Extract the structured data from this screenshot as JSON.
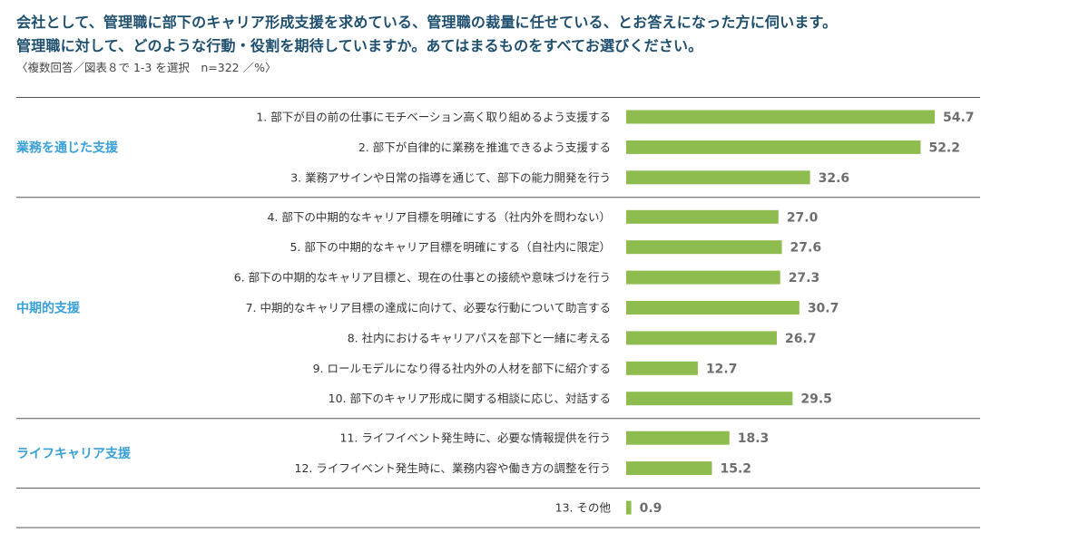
{
  "question": {
    "line1": "会社として、管理職に部下のキャリア形成支援を求めている、管理職の裁量に任せている、とお答えになった方に伺います。",
    "line2": "管理職に対して、どのような行動・役割を期待していますか。あてはまるものをすべてお選びください。",
    "note": "〈複数回答／図表８で 1-3 を選択　n=322 ／%〉"
  },
  "colors": {
    "bar": "#8fbc4e",
    "group_label": "#3aa0d8",
    "divider": "#555555"
  },
  "chart_data": {
    "type": "bar",
    "orientation": "horizontal",
    "xlim": [
      0,
      60
    ],
    "grid": false,
    "legend": "none",
    "groups": [
      {
        "label": "業務を通じた支援",
        "items": [
          {
            "label": "1. 部下が目の前の仕事にモチベーション高く取り組めるよう支援する",
            "value": 54.7
          },
          {
            "label": "2. 部下が自律的に業務を推進できるよう支援する",
            "value": 52.2
          },
          {
            "label": "3. 業務アサインや日常の指導を通じて、部下の能力開発を行う",
            "value": 32.6
          }
        ]
      },
      {
        "label": "中期的支援",
        "items": [
          {
            "label": "4. 部下の中期的なキャリア目標を明確にする（社内外を問わない）",
            "value": 27.0
          },
          {
            "label": "5. 部下の中期的なキャリア目標を明確にする（自社内に限定）",
            "value": 27.6
          },
          {
            "label": "6. 部下の中期的なキャリア目標と、現在の仕事との接続や意味づけを行う",
            "value": 27.3
          },
          {
            "label": "7. 中期的なキャリア目標の達成に向けて、必要な行動について助言する",
            "value": 30.7
          },
          {
            "label": "8. 社内におけるキャリアパスを部下と一緒に考える",
            "value": 26.7
          },
          {
            "label": "9. ロールモデルになり得る社内外の人材を部下に紹介する",
            "value": 12.7
          },
          {
            "label": "10. 部下のキャリア形成に関する相談に応じ、対話する",
            "value": 29.5
          }
        ]
      },
      {
        "label": "ライフキャリア支援",
        "items": [
          {
            "label": "11. ライフイベント発生時に、必要な情報提供を行う",
            "value": 18.3
          },
          {
            "label": "12. ライフイベント発生時に、業務内容や働き方の調整を行う",
            "value": 15.2
          }
        ]
      },
      {
        "label": "",
        "items": [
          {
            "label": "13. その他",
            "value": 0.9
          }
        ]
      }
    ]
  }
}
